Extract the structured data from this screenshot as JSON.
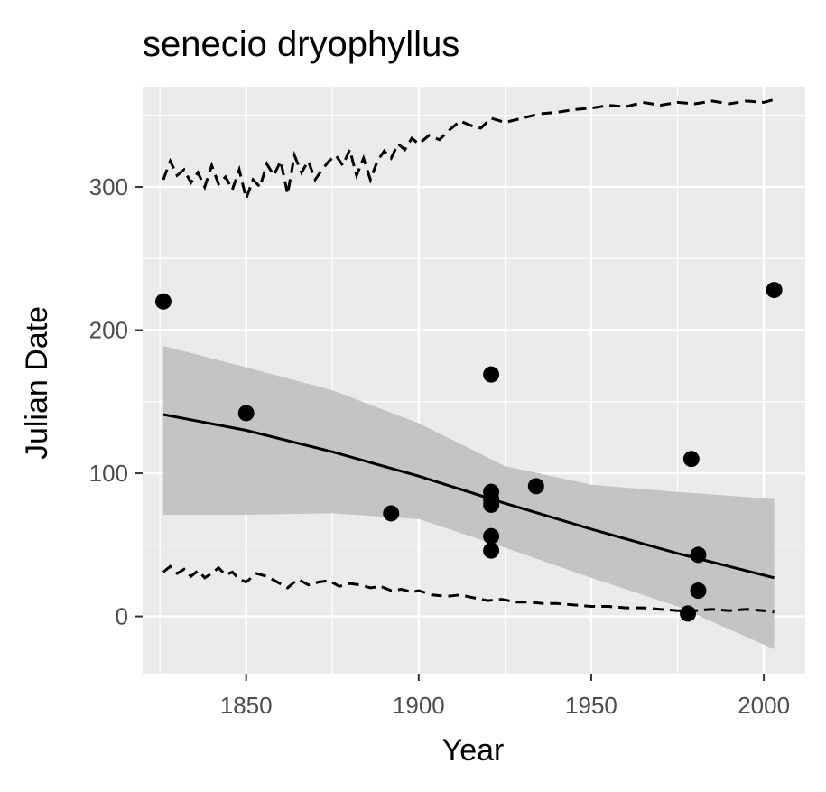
{
  "chart_data": {
    "type": "scatter",
    "title": "senecio dryophyllus",
    "xlabel": "Year",
    "ylabel": "Julian Date",
    "xlim": [
      1820,
      2012
    ],
    "ylim": [
      -40,
      370
    ],
    "x_ticks": [
      1850,
      1900,
      1950,
      2000
    ],
    "y_ticks": [
      0,
      100,
      200,
      300
    ],
    "grid": true,
    "legend": "none",
    "colors": {
      "panel": "#ebebeb",
      "grid": "#ffffff",
      "points": "#000000",
      "ribbon": "#c4c4c4",
      "tick_text": "#4d4d4d"
    },
    "points": [
      {
        "x": 1826,
        "y": 220
      },
      {
        "x": 1850,
        "y": 142
      },
      {
        "x": 1892,
        "y": 72
      },
      {
        "x": 1921,
        "y": 169
      },
      {
        "x": 1921,
        "y": 87
      },
      {
        "x": 1921,
        "y": 82
      },
      {
        "x": 1921,
        "y": 78
      },
      {
        "x": 1921,
        "y": 56
      },
      {
        "x": 1921,
        "y": 46
      },
      {
        "x": 1934,
        "y": 91
      },
      {
        "x": 1978,
        "y": 2
      },
      {
        "x": 1979,
        "y": 110
      },
      {
        "x": 1981,
        "y": 43
      },
      {
        "x": 1981,
        "y": 18
      },
      {
        "x": 2003,
        "y": 228
      }
    ],
    "trend": {
      "x": [
        1826,
        1850,
        1875,
        1900,
        1925,
        1950,
        1975,
        2003
      ],
      "y": [
        141,
        130,
        115,
        98,
        79,
        61,
        44,
        27
      ]
    },
    "ribbon": {
      "x": [
        1826,
        1850,
        1875,
        1900,
        1925,
        1950,
        1975,
        2003
      ],
      "upper": [
        189,
        174,
        158,
        135,
        105,
        92,
        87,
        82
      ],
      "lower": [
        71,
        71,
        72,
        68,
        48,
        27,
        7,
        -23
      ]
    },
    "upper_band": {
      "x": [
        1826,
        1828,
        1830,
        1832,
        1834,
        1836,
        1838,
        1840,
        1842,
        1844,
        1846,
        1848,
        1850,
        1852,
        1854,
        1856,
        1858,
        1860,
        1862,
        1864,
        1866,
        1868,
        1870,
        1872,
        1874,
        1876,
        1878,
        1880,
        1882,
        1884,
        1886,
        1888,
        1890,
        1892,
        1894,
        1896,
        1898,
        1900,
        1903,
        1906,
        1909,
        1912,
        1915,
        1918,
        1921,
        1925,
        1930,
        1935,
        1940,
        1945,
        1950,
        1955,
        1960,
        1965,
        1970,
        1975,
        1980,
        1985,
        1990,
        1995,
        2000,
        2003
      ],
      "y": [
        305,
        318,
        308,
        312,
        303,
        310,
        300,
        315,
        302,
        307,
        298,
        312,
        292,
        305,
        300,
        316,
        308,
        318,
        295,
        322,
        310,
        318,
        305,
        312,
        318,
        322,
        315,
        326,
        308,
        320,
        305,
        318,
        325,
        320,
        330,
        326,
        334,
        330,
        336,
        333,
        340,
        346,
        343,
        341,
        348,
        345,
        348,
        351,
        352,
        354,
        355,
        357,
        356,
        359,
        357,
        359,
        358,
        360,
        358,
        360,
        359,
        361
      ]
    },
    "lower_band": {
      "x": [
        1826,
        1828,
        1830,
        1832,
        1834,
        1836,
        1838,
        1840,
        1842,
        1844,
        1846,
        1848,
        1850,
        1853,
        1856,
        1859,
        1862,
        1865,
        1868,
        1871,
        1874,
        1877,
        1880,
        1883,
        1886,
        1889,
        1892,
        1895,
        1898,
        1900,
        1904,
        1908,
        1912,
        1916,
        1920,
        1924,
        1928,
        1932,
        1936,
        1940,
        1945,
        1950,
        1955,
        1960,
        1965,
        1970,
        1975,
        1980,
        1985,
        1990,
        1995,
        2000,
        2003
      ],
      "y": [
        31,
        35,
        30,
        33,
        28,
        32,
        27,
        30,
        34,
        29,
        31,
        26,
        24,
        30,
        28,
        24,
        20,
        26,
        22,
        24,
        25,
        21,
        23,
        22,
        20,
        21,
        18,
        19,
        17,
        18,
        15,
        14,
        15,
        13,
        11,
        12,
        10,
        10,
        9,
        9,
        8,
        7,
        7,
        6,
        6,
        5,
        4,
        4,
        5,
        4,
        5,
        4,
        3
      ]
    }
  }
}
